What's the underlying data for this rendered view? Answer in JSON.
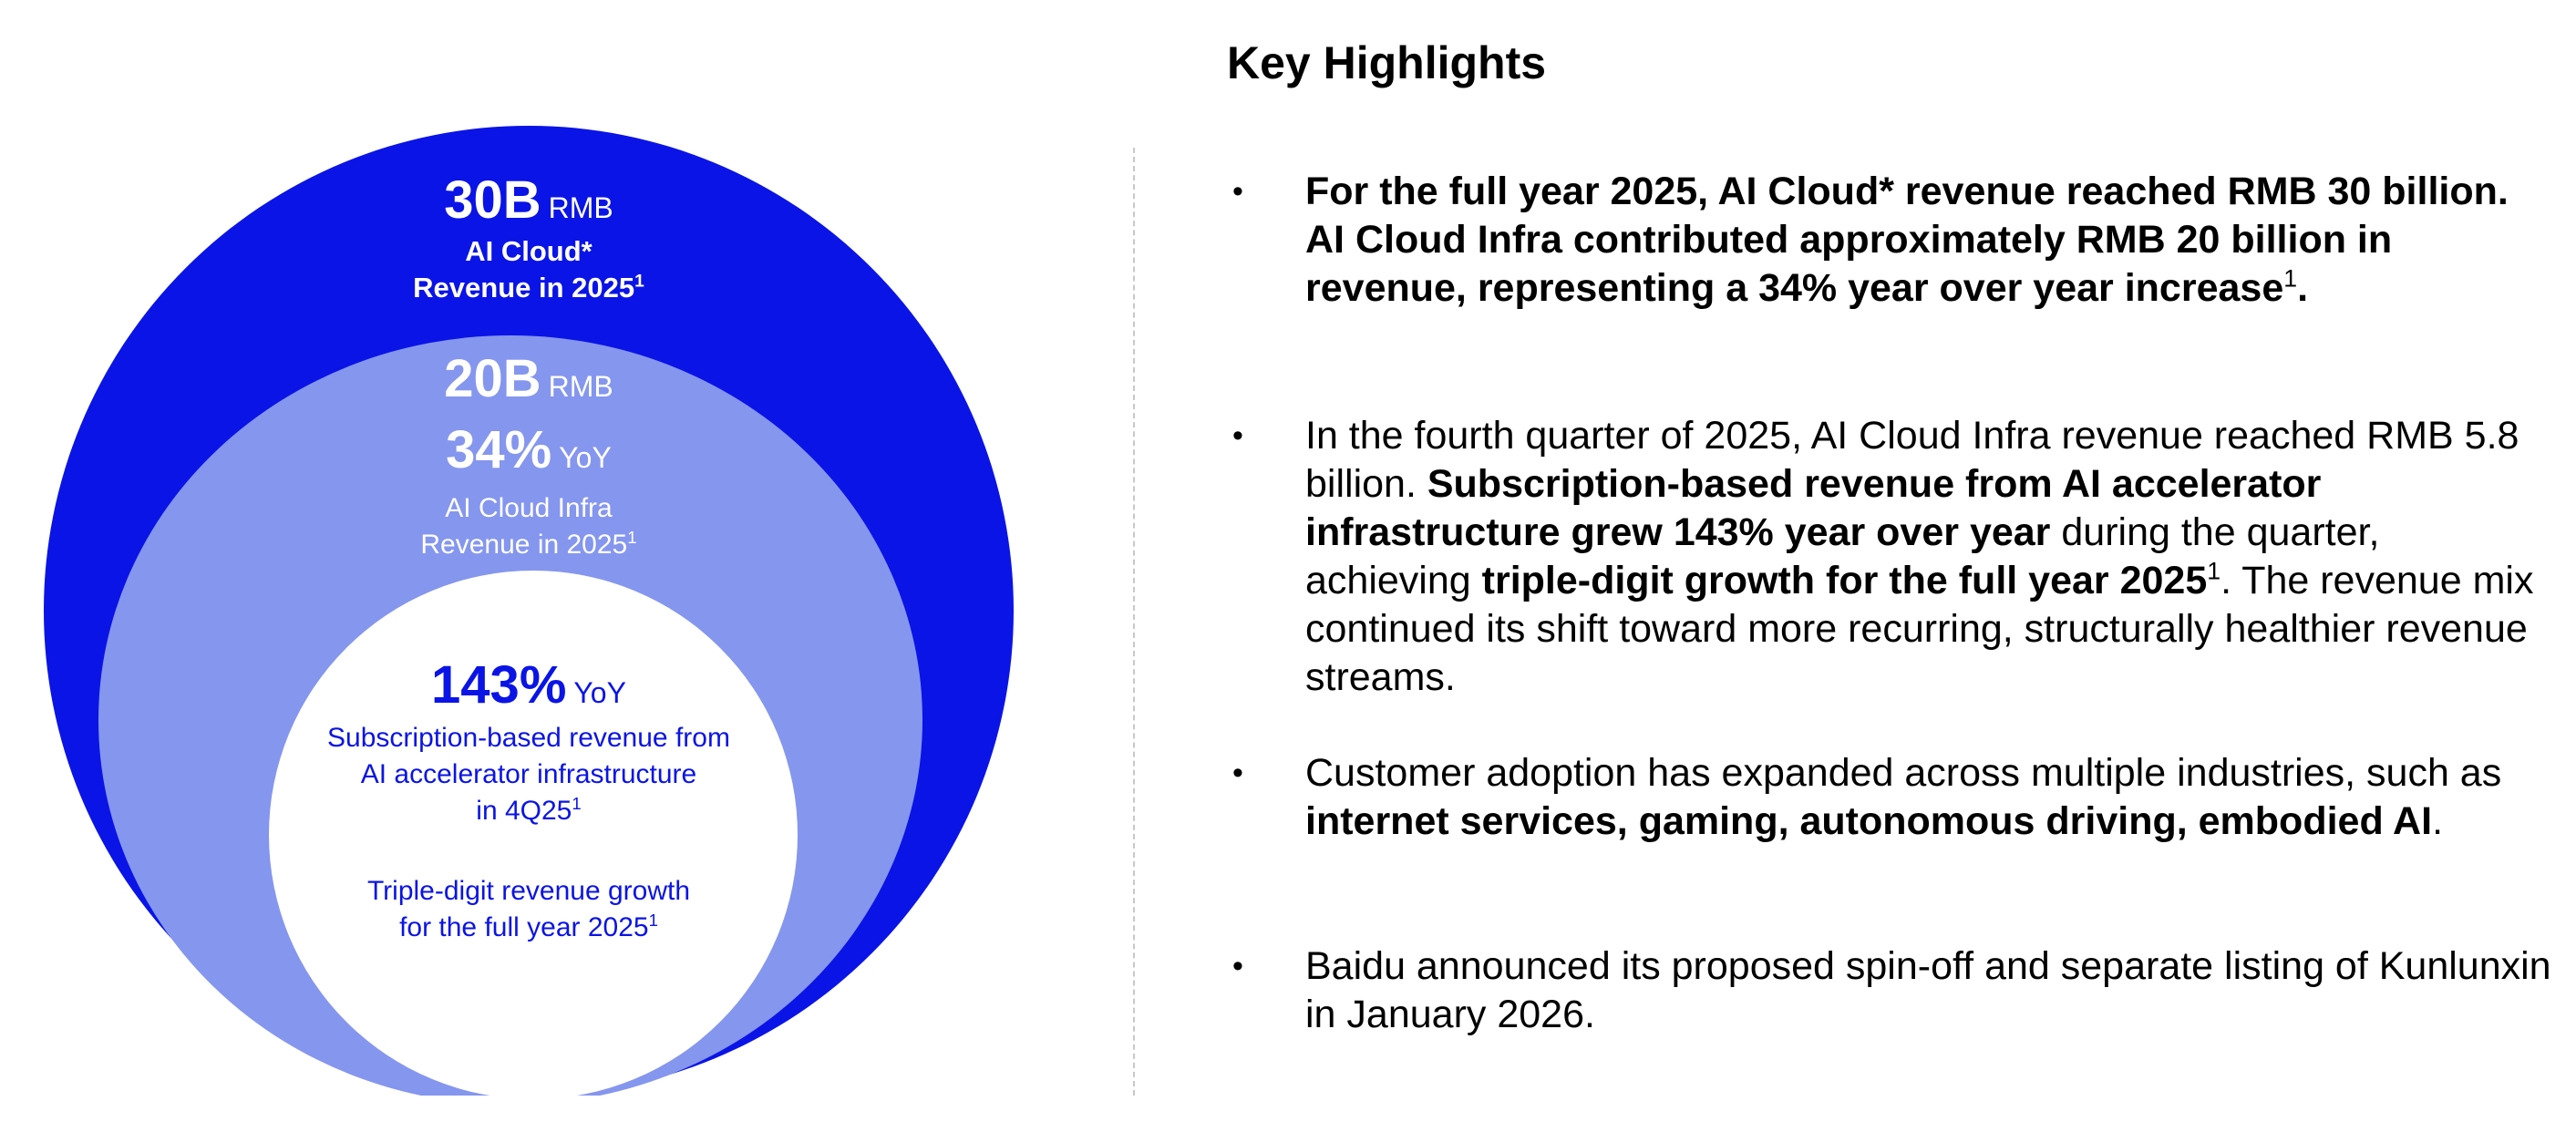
{
  "diagram": {
    "outer": {
      "value": "30B",
      "unit": "RMB",
      "line1": "AI Cloud*",
      "line2": "Revenue in 2025",
      "sup": "1",
      "color": "#0a14e6"
    },
    "middle": {
      "value": "20B",
      "unit": "RMB",
      "growth": "34%",
      "growth_unit": "YoY",
      "line1": "AI Cloud Infra",
      "line2": "Revenue in 2025",
      "sup": "1",
      "color": "#8596ee"
    },
    "inner": {
      "growth": "143%",
      "growth_unit": "YoY",
      "line1": "Subscription-based revenue from",
      "line2": "AI accelerator infrastructure",
      "line3": "in 4Q25",
      "sup": "1",
      "line4": "Triple-digit revenue growth",
      "line5": "for the full year 2025",
      "sup2": "1",
      "color": "#ffffff"
    }
  },
  "highlights": {
    "title": "Key Highlights",
    "bullet_char": "•",
    "b1": {
      "bold1": "For the full year 2025, AI Cloud* revenue reached RMB 30 billion. AI Cloud Infra contributed approximately RMB 20 billion in revenue, representing a 34% year over year increase",
      "sup": "1",
      "end": "."
    },
    "b2": {
      "t1": "In the fourth quarter of 2025, AI Cloud Infra revenue reached RMB 5.8 billion. ",
      "bold1": "Subscription-based revenue from AI accelerator infrastructure grew 143% year over year",
      "t2": " during the quarter, achieving ",
      "bold2": "triple-digit growth for the full year 2025",
      "sup": "1",
      "t3": ". The revenue mix continued its shift toward more recurring, structurally healthier revenue streams."
    },
    "b3": {
      "t1": "Customer adoption has expanded across multiple industries, such as ",
      "bold1": "internet services, gaming, autonomous driving, embodied AI",
      "t2": "."
    },
    "b4": {
      "t1": "Baidu announced its proposed spin-off and separate listing of Kunlunxin in January 2026."
    }
  }
}
